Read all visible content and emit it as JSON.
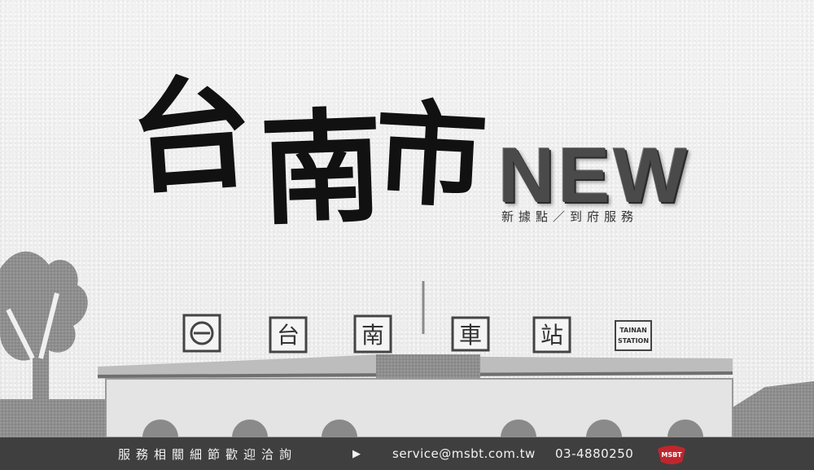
{
  "headline": {
    "chars": [
      "台",
      "南",
      "市"
    ],
    "accent_word": "NEW",
    "subtitle": "新據點／到府服務"
  },
  "station": {
    "sign_chars": [
      "台",
      "南",
      "車",
      "站"
    ],
    "english_sign": [
      "TAINAN",
      "STATION"
    ]
  },
  "footer": {
    "message": "服務相關細節歡迎洽詢",
    "arrow_icon": "play-triangle-icon",
    "email": "service@msbt.com.tw",
    "phone": "03-4880250",
    "logo_icon": "msbt-logo-icon",
    "logo_text": "MSBT"
  },
  "colors": {
    "background": "#ececec",
    "footer_bg": "#3f3f3f",
    "logo_red": "#c0262d"
  }
}
